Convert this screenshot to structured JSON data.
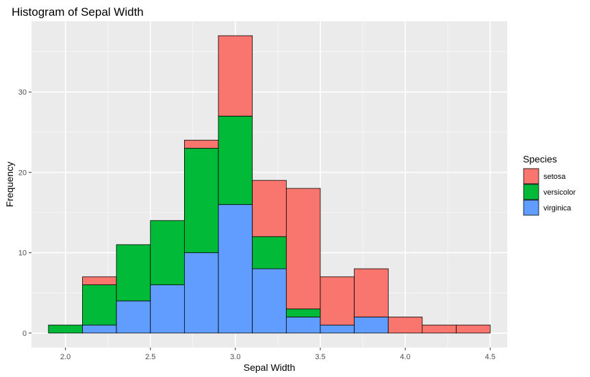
{
  "chart_data": {
    "type": "bar",
    "title": "Histogram of Sepal Width",
    "xlabel": "Sepal Width",
    "ylabel": "Frequency",
    "bins": [
      [
        1.9,
        2.1
      ],
      [
        2.1,
        2.3
      ],
      [
        2.3,
        2.5
      ],
      [
        2.5,
        2.7
      ],
      [
        2.7,
        2.9
      ],
      [
        2.9,
        3.1
      ],
      [
        3.1,
        3.3
      ],
      [
        3.3,
        3.5
      ],
      [
        3.5,
        3.7
      ],
      [
        3.7,
        3.9
      ],
      [
        3.9,
        4.1
      ],
      [
        4.1,
        4.3
      ],
      [
        4.3,
        4.5
      ]
    ],
    "series": [
      {
        "name": "virginica",
        "color": "#619CFF",
        "values": [
          0,
          1,
          4,
          6,
          10,
          16,
          8,
          2,
          1,
          2,
          0,
          0,
          0
        ]
      },
      {
        "name": "versicolor",
        "color": "#00BA38",
        "values": [
          1,
          5,
          7,
          8,
          13,
          11,
          4,
          1,
          0,
          0,
          0,
          0,
          0
        ]
      },
      {
        "name": "setosa",
        "color": "#F8766D",
        "values": [
          0,
          1,
          0,
          0,
          1,
          10,
          7,
          15,
          6,
          6,
          2,
          1,
          1
        ]
      }
    ],
    "stacked": true,
    "xlim": [
      1.8,
      4.6
    ],
    "ylim": [
      -1.8,
      38.8
    ],
    "xticks": [
      {
        "value": 2.0,
        "label": "2.0"
      },
      {
        "value": 2.5,
        "label": "2.5"
      },
      {
        "value": 3.0,
        "label": "3.0"
      },
      {
        "value": 3.5,
        "label": "3.5"
      },
      {
        "value": 4.0,
        "label": "4.0"
      },
      {
        "value": 4.5,
        "label": "4.5"
      }
    ],
    "yticks": [
      {
        "value": 0,
        "label": "0"
      },
      {
        "value": 10,
        "label": "10"
      },
      {
        "value": 20,
        "label": "20"
      },
      {
        "value": 30,
        "label": "30"
      }
    ],
    "grid": true,
    "legend": {
      "title": "Species",
      "position": "right",
      "entries": [
        {
          "label": "setosa",
          "color": "#F8766D"
        },
        {
          "label": "versicolor",
          "color": "#00BA38"
        },
        {
          "label": "virginica",
          "color": "#619CFF"
        }
      ]
    }
  }
}
